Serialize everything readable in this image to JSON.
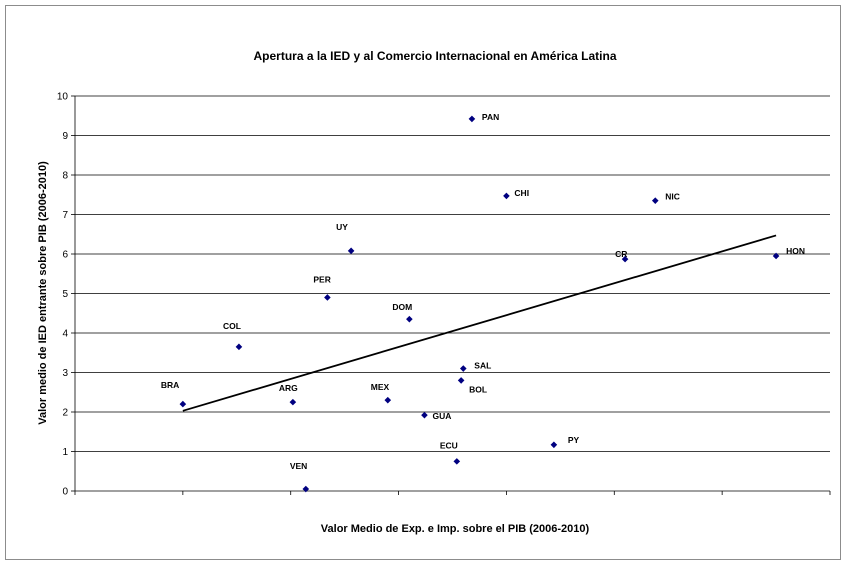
{
  "chart_data": {
    "type": "scatter",
    "title": "Apertura a la IED y al Comercio Internacional en América Latina",
    "xlabel": "Valor Medio de Exp. e Imp. sobre el PIB (2006-2010)",
    "ylabel": "Valor medio de IED entrante sobre PIB (2006-2010)",
    "ylim": [
      0,
      10
    ],
    "yticks": [
      0,
      1,
      2,
      3,
      4,
      5,
      6,
      7,
      8,
      9,
      10
    ],
    "grid": "horizontal",
    "marker_color": "#000080",
    "points": [
      {
        "label": "BRA",
        "x": 0.25,
        "y": 2.2
      },
      {
        "label": "COL",
        "x": 0.38,
        "y": 3.65
      },
      {
        "label": "ARG",
        "x": 0.505,
        "y": 2.25
      },
      {
        "label": "VEN",
        "x": 0.535,
        "y": 0.05
      },
      {
        "label": "PER",
        "x": 0.585,
        "y": 4.9
      },
      {
        "label": "UY",
        "x": 0.64,
        "y": 6.08
      },
      {
        "label": "MEX",
        "x": 0.725,
        "y": 2.3
      },
      {
        "label": "DOM",
        "x": 0.775,
        "y": 4.35
      },
      {
        "label": "GUA",
        "x": 0.81,
        "y": 1.92
      },
      {
        "label": "ECU",
        "x": 0.885,
        "y": 0.75
      },
      {
        "label": "SAL",
        "x": 0.9,
        "y": 3.1
      },
      {
        "label": "BOL",
        "x": 0.895,
        "y": 2.8
      },
      {
        "label": "PAN",
        "x": 0.92,
        "y": 9.42
      },
      {
        "label": "CHI",
        "x": 1.0,
        "y": 7.47
      },
      {
        "label": "PY",
        "x": 1.11,
        "y": 1.17
      },
      {
        "label": "CR",
        "x": 1.275,
        "y": 5.87
      },
      {
        "label": "NIC",
        "x": 1.345,
        "y": 7.35
      },
      {
        "label": "HON",
        "x": 1.625,
        "y": 5.95
      }
    ],
    "trendline": {
      "x": [
        0.25,
        1.625
      ],
      "y": [
        2.03,
        6.47
      ]
    }
  }
}
